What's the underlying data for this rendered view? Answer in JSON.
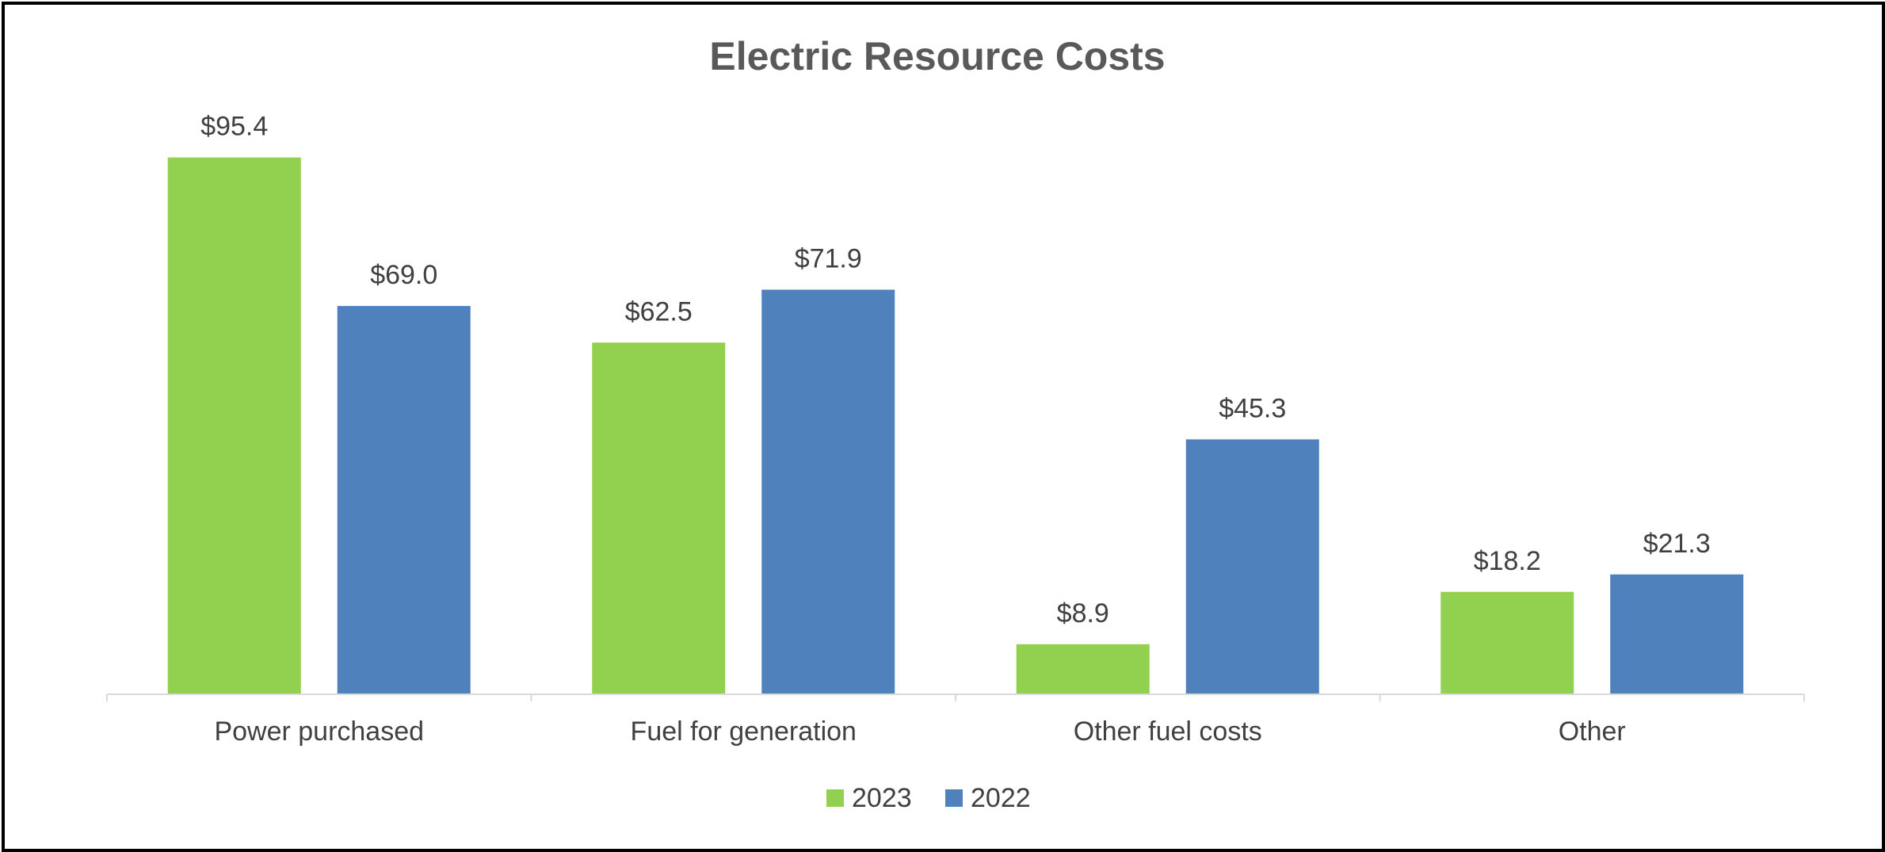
{
  "chart_data": {
    "type": "bar",
    "title": "Electric Resource Costs",
    "xlabel": "",
    "ylabel": "",
    "categories": [
      "Power purchased",
      "Fuel for generation",
      "Other fuel costs",
      "Other"
    ],
    "series": [
      {
        "name": "2023",
        "values": [
          95.4,
          62.5,
          8.9,
          18.2
        ],
        "labels": [
          "$95.4",
          "$62.5",
          "$8.9",
          "$18.2"
        ],
        "color": "#92d050"
      },
      {
        "name": "2022",
        "values": [
          69.0,
          71.9,
          45.3,
          21.3
        ],
        "labels": [
          "$69.0",
          "$71.9",
          "$45.3",
          "$21.3"
        ],
        "color": "#4f81bd"
      }
    ],
    "ylim": [
      0,
      100
    ],
    "grid": false,
    "legend": "bottom"
  }
}
